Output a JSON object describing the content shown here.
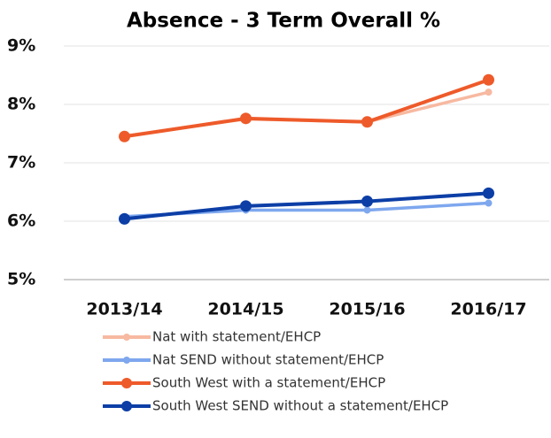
{
  "chart_data": {
    "type": "line",
    "title": "Absence - 3 Term Overall %",
    "categories": [
      "2013/14",
      "2014/15",
      "2015/16",
      "2016/17"
    ],
    "series": [
      {
        "name": "Nat with statement/EHCP",
        "color": "#f7b9a1",
        "values": [
          7.46,
          7.75,
          7.7,
          8.21
        ]
      },
      {
        "name": "Nat SEND without statement/EHCP",
        "color": "#7ea7ee",
        "values": [
          6.08,
          6.19,
          6.19,
          6.31
        ]
      },
      {
        "name": "South West with a statement/EHCP",
        "color": "#ee5a2a",
        "values": [
          7.45,
          7.76,
          7.7,
          8.42
        ]
      },
      {
        "name": "South West SEND without a statement/EHCP",
        "color": "#0c3ea6",
        "values": [
          6.04,
          6.26,
          6.34,
          6.48
        ]
      }
    ],
    "ylim": [
      5,
      9
    ],
    "yticks": [
      {
        "value": 5,
        "label": "5%"
      },
      {
        "value": 6,
        "label": "6%"
      },
      {
        "value": 7,
        "label": "7%"
      },
      {
        "value": 8,
        "label": "8%"
      },
      {
        "value": 9,
        "label": "9%"
      }
    ],
    "grid": true
  }
}
